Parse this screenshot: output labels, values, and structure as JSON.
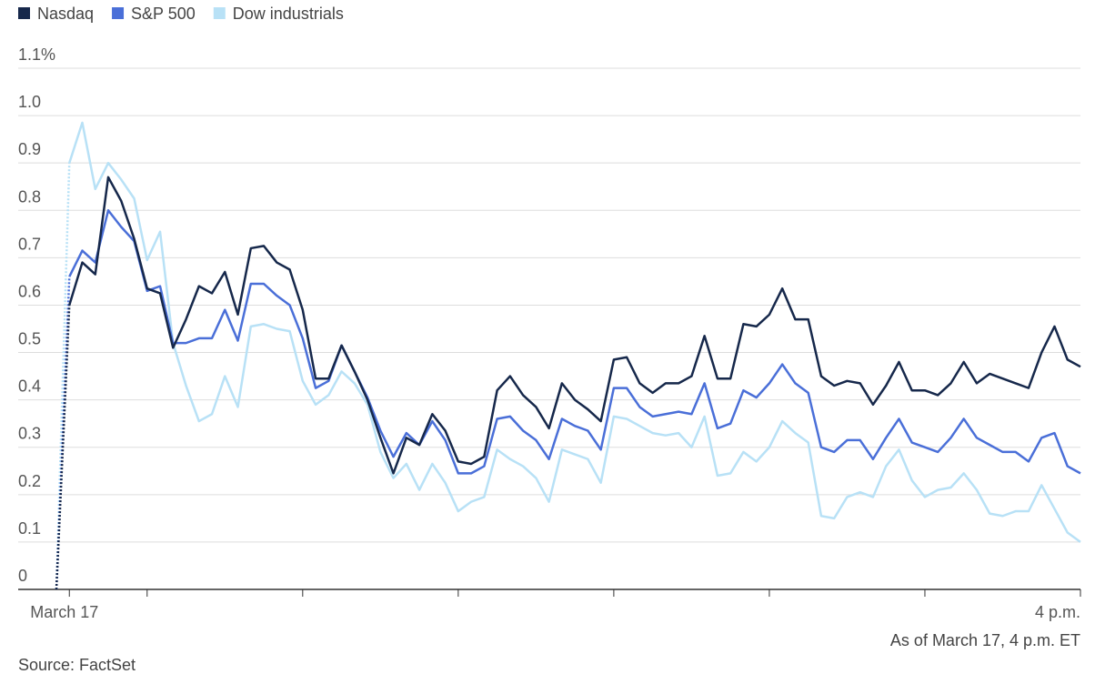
{
  "chart_data": {
    "type": "line",
    "series": [
      {
        "name": "Nasdaq",
        "color": "#16284b",
        "values": [
          0,
          0.6,
          0.69,
          0.665,
          0.87,
          0.82,
          0.74,
          0.635,
          0.625,
          0.51,
          0.57,
          0.64,
          0.625,
          0.67,
          0.58,
          0.72,
          0.725,
          0.69,
          0.675,
          0.59,
          0.445,
          0.445,
          0.515,
          0.46,
          0.4,
          0.32,
          0.245,
          0.32,
          0.305,
          0.37,
          0.335,
          0.27,
          0.265,
          0.28,
          0.42,
          0.45,
          0.41,
          0.385,
          0.34,
          0.435,
          0.4,
          0.38,
          0.355,
          0.485,
          0.49,
          0.435,
          0.415,
          0.435,
          0.435,
          0.45,
          0.535,
          0.445,
          0.445,
          0.56,
          0.555,
          0.58,
          0.635,
          0.57,
          0.57,
          0.45,
          0.43,
          0.44,
          0.435,
          0.39,
          0.43,
          0.48,
          0.42,
          0.42,
          0.41,
          0.435,
          0.48,
          0.435,
          0.455,
          0.445,
          0.435,
          0.425,
          0.5,
          0.555,
          0.485,
          0.47
        ]
      },
      {
        "name": "S&P 500",
        "color": "#4a6fd8",
        "values": [
          0,
          0.66,
          0.715,
          0.69,
          0.8,
          0.765,
          0.735,
          0.63,
          0.64,
          0.52,
          0.52,
          0.53,
          0.53,
          0.59,
          0.525,
          0.645,
          0.645,
          0.62,
          0.6,
          0.53,
          0.425,
          0.44,
          0.515,
          0.46,
          0.405,
          0.335,
          0.28,
          0.33,
          0.305,
          0.355,
          0.315,
          0.245,
          0.245,
          0.26,
          0.36,
          0.365,
          0.335,
          0.315,
          0.275,
          0.36,
          0.345,
          0.335,
          0.295,
          0.425,
          0.425,
          0.385,
          0.365,
          0.37,
          0.375,
          0.37,
          0.435,
          0.34,
          0.35,
          0.42,
          0.405,
          0.435,
          0.475,
          0.435,
          0.415,
          0.3,
          0.29,
          0.315,
          0.315,
          0.275,
          0.32,
          0.36,
          0.31,
          0.3,
          0.29,
          0.32,
          0.36,
          0.32,
          0.305,
          0.29,
          0.29,
          0.27,
          0.32,
          0.33,
          0.26,
          0.245
        ]
      },
      {
        "name": "Dow industrials",
        "color": "#b8e1f6",
        "values": [
          0,
          0.9,
          0.985,
          0.845,
          0.9,
          0.865,
          0.825,
          0.695,
          0.755,
          0.52,
          0.43,
          0.355,
          0.37,
          0.45,
          0.385,
          0.555,
          0.56,
          0.55,
          0.545,
          0.44,
          0.39,
          0.41,
          0.46,
          0.435,
          0.39,
          0.29,
          0.235,
          0.265,
          0.21,
          0.265,
          0.225,
          0.165,
          0.185,
          0.195,
          0.295,
          0.275,
          0.26,
          0.235,
          0.185,
          0.295,
          0.285,
          0.275,
          0.225,
          0.365,
          0.36,
          0.345,
          0.33,
          0.325,
          0.33,
          0.3,
          0.365,
          0.24,
          0.245,
          0.29,
          0.27,
          0.3,
          0.355,
          0.33,
          0.31,
          0.155,
          0.15,
          0.195,
          0.205,
          0.195,
          0.26,
          0.295,
          0.23,
          0.195,
          0.21,
          0.215,
          0.245,
          0.21,
          0.16,
          0.155,
          0.165,
          0.165,
          0.22,
          0.17,
          0.12,
          0.1
        ]
      }
    ],
    "x": [
      -5,
      0,
      5,
      10,
      15,
      20,
      25,
      30,
      35,
      40,
      45,
      50,
      55,
      60,
      65,
      70,
      75,
      80,
      85,
      90,
      95,
      100,
      105,
      110,
      115,
      120,
      125,
      130,
      135,
      140,
      145,
      150,
      155,
      160,
      165,
      170,
      175,
      180,
      185,
      190,
      195,
      200,
      205,
      210,
      215,
      220,
      225,
      230,
      235,
      240,
      245,
      250,
      255,
      260,
      265,
      270,
      275,
      280,
      285,
      290,
      295,
      300,
      305,
      310,
      315,
      320,
      325,
      330,
      335,
      340,
      345,
      350,
      355,
      360,
      365,
      370,
      375,
      380,
      385,
      390
    ],
    "xlim": [
      -5,
      390
    ],
    "xticks": [
      {
        "value": 0,
        "label": "March 17"
      },
      {
        "value": 390,
        "label": "4 p.m."
      }
    ],
    "xticks_minor": [
      30,
      90,
      150,
      210,
      270,
      330
    ],
    "ylim": [
      0,
      1.1
    ],
    "yticks": [
      0,
      0.1,
      0.2,
      0.3,
      0.4,
      0.5,
      0.6,
      0.7,
      0.8,
      0.9,
      {
        "value": 1,
        "label": "1.0"
      },
      {
        "value": 1.1,
        "label": "1.1%"
      }
    ],
    "grid": true,
    "note": "As of March 17, 4 p.m. ET",
    "source": "Source: FactSet"
  }
}
